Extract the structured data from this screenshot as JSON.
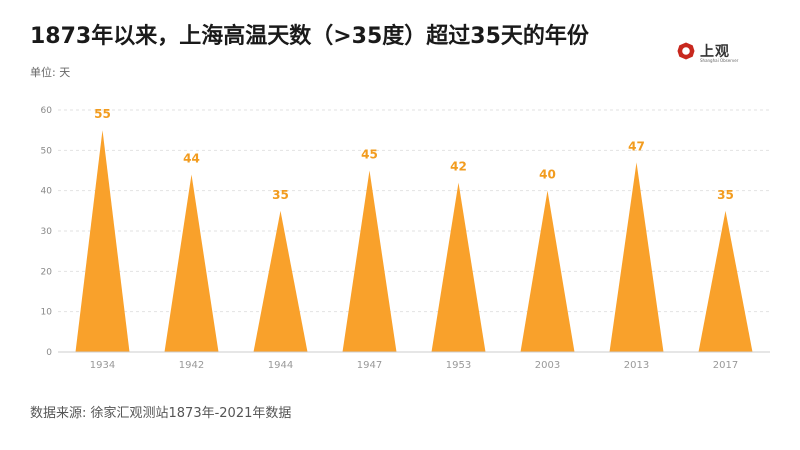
{
  "header": {
    "title": "1873年以来，上海高温天数（>35度）超过35天的年份",
    "unit": "单位: 天"
  },
  "logo": {
    "name": "上观",
    "subtitle": "Shanghai Observer",
    "color": "#c8281e"
  },
  "footer": {
    "source": "数据来源: 徐家汇观测站1873年-2021年数据"
  },
  "chart_data": {
    "type": "bar",
    "categories": [
      "1934",
      "1942",
      "1944",
      "1947",
      "1953",
      "2003",
      "2013",
      "2017"
    ],
    "values": [
      55,
      44,
      35,
      45,
      42,
      40,
      47,
      35
    ],
    "title": "1873年以来，上海高温天数（>35度）超过35天的年份",
    "ylabel": "单位: 天",
    "ylim": [
      0,
      60
    ],
    "yticks": [
      0,
      10,
      20,
      30,
      40,
      50,
      60
    ],
    "grid": true,
    "bar_shape": "triangle",
    "bar_color": "#f9a12b",
    "label_color": "#f29c1f"
  }
}
